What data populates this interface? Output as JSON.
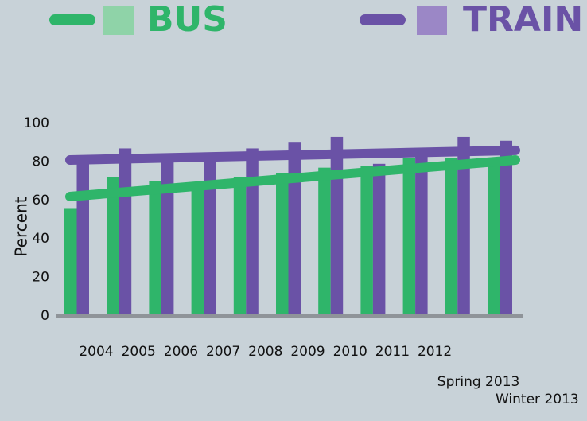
{
  "chart_data": {
    "type": "bar",
    "y_label": "Percent",
    "categories": [
      "2004",
      "2005",
      "2006",
      "2007",
      "2008",
      "2009",
      "2010",
      "2011",
      "2012",
      "Spring 2013",
      "Winter 2013"
    ],
    "series": [
      {
        "name": "BUS",
        "color": "#2fb56a",
        "legend_color": "#8fd3a8",
        "values": [
          56,
          72,
          70,
          66,
          72,
          74,
          77,
          78,
          82,
          82,
          79
        ],
        "trend": [
          62,
          81
        ]
      },
      {
        "name": "TRAIN",
        "color": "#6a52a6",
        "legend_color": "#9b87c6",
        "values": [
          83,
          87,
          84,
          83,
          87,
          90,
          93,
          79,
          83,
          93,
          91
        ],
        "trend": [
          81,
          86
        ]
      }
    ],
    "ylim": [
      0,
      100
    ],
    "yticks": [
      0,
      20,
      40,
      60,
      80,
      100
    ]
  }
}
